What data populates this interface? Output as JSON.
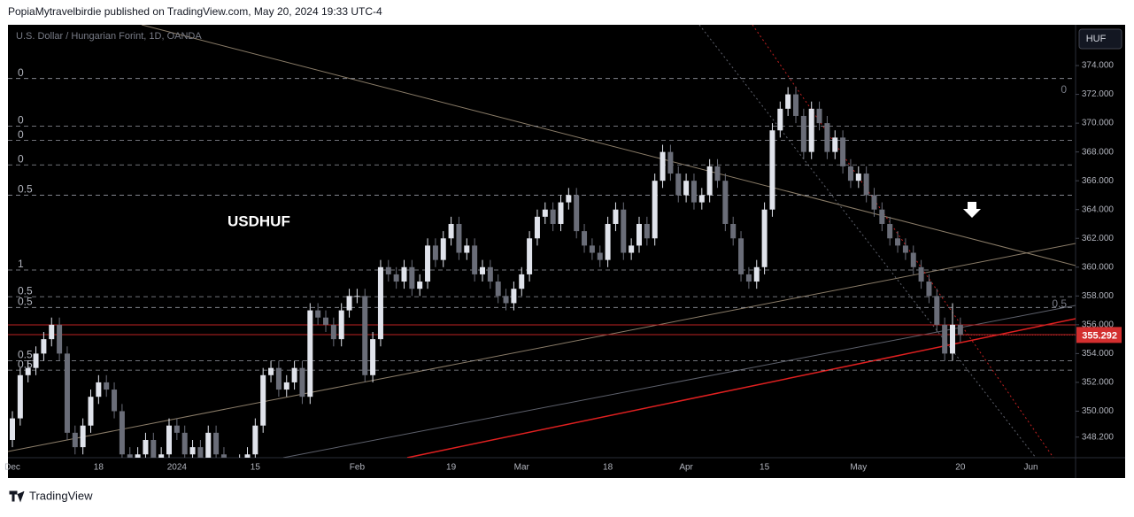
{
  "header": {
    "byline": "PopiaMytravelbirdie published on TradingView.com, May 20, 2024 19:33 UTC-4",
    "brand": "TradingView"
  },
  "chart_data": {
    "type": "candlestick",
    "title": "USDHUF",
    "subtitle": "U.S. Dollar / Hungarian Forint, 1D, OANDA",
    "currency": "HUF",
    "up_color": "#e0e3eb",
    "down_color": "#6a6d78",
    "grid": false,
    "categories": [
      "Dec",
      null,
      null,
      null,
      null,
      null,
      null,
      null,
      null,
      null,
      null,
      "18",
      null,
      null,
      null,
      null,
      null,
      null,
      null,
      null,
      null,
      "2024",
      null,
      null,
      null,
      null,
      null,
      null,
      null,
      null,
      null,
      "15",
      null,
      null,
      null,
      null,
      null,
      null,
      null,
      null,
      null,
      null,
      null,
      null,
      "Feb",
      null,
      null,
      null,
      null,
      null,
      null,
      null,
      null,
      null,
      null,
      null,
      "19",
      null,
      null,
      null,
      null,
      null,
      null,
      null,
      null,
      "Mar",
      null,
      null,
      null,
      null,
      null,
      null,
      null,
      null,
      null,
      null,
      "18",
      null,
      null,
      null,
      null,
      null,
      null,
      null,
      null,
      null,
      "Apr",
      null,
      null,
      null,
      null,
      null,
      null,
      null,
      null,
      null,
      "15",
      null,
      null,
      null,
      null,
      null,
      null,
      null,
      null,
      null,
      null,
      null,
      "May",
      null,
      null,
      null,
      null,
      null,
      null,
      null,
      null,
      null,
      null,
      null,
      null,
      "20",
      null,
      null,
      null,
      null,
      null,
      null,
      null,
      null,
      "Jun"
    ],
    "open": [
      348,
      349.5,
      352.5,
      353,
      354,
      355,
      356,
      354,
      348.5,
      347.5,
      349,
      351,
      352,
      351.5,
      350,
      347,
      346,
      347,
      348,
      346.5,
      347,
      349,
      348.5,
      347,
      347.5,
      346,
      348.5,
      347,
      345.5,
      346,
      346.5,
      347,
      349,
      352.5,
      353,
      351.5,
      352,
      353,
      351,
      357,
      356.5,
      356,
      355,
      357,
      358,
      358,
      352.5,
      355,
      360,
      359.5,
      359,
      360,
      358.5,
      359,
      361.5,
      360.5,
      362,
      363,
      361,
      361.5,
      359.5,
      360,
      359,
      358,
      357.5,
      358.5,
      359.5,
      362,
      363.5,
      364,
      363,
      364.5,
      365,
      362.5,
      361.5,
      361,
      360.5,
      363,
      364,
      361,
      361.5,
      363,
      362,
      366,
      368,
      366.5,
      365,
      366,
      364.5,
      365,
      367,
      366,
      363,
      362,
      359.5,
      359,
      360,
      364,
      369.5,
      371,
      372,
      370.5,
      368,
      371,
      370,
      368,
      369,
      367,
      366,
      366.5,
      365,
      364,
      363,
      362,
      361.5,
      361,
      360,
      359,
      358,
      356,
      354,
      356,
      null,
      null,
      null,
      null,
      null,
      null,
      null,
      null,
      null
    ],
    "high": [
      350,
      353,
      353.5,
      354.5,
      355.5,
      356.5,
      356.5,
      354.5,
      349,
      349.5,
      351.5,
      352.5,
      352.5,
      352,
      350.5,
      347.5,
      347.5,
      348.5,
      348.5,
      347.5,
      349.5,
      349.5,
      349,
      348,
      348,
      349,
      349,
      347.5,
      346.5,
      347,
      347.5,
      349.5,
      353,
      353.5,
      353.5,
      352.5,
      353.5,
      353.5,
      357.5,
      357.5,
      357,
      356.5,
      357.5,
      358.5,
      358.5,
      358.5,
      355.5,
      360.5,
      360.5,
      360,
      360.5,
      360.5,
      359.5,
      362,
      362,
      362.5,
      363.5,
      363.5,
      362,
      362,
      360.5,
      360.5,
      359.5,
      358.5,
      359,
      360,
      362.5,
      364,
      364.5,
      364.5,
      365,
      365.5,
      365.5,
      363,
      362,
      361.5,
      363.5,
      364.5,
      364.5,
      362,
      363.5,
      363.5,
      366.5,
      368.5,
      368.5,
      367,
      366.5,
      366.5,
      365.5,
      367.5,
      367.5,
      366.5,
      363.5,
      362.5,
      360,
      360.5,
      364.5,
      370,
      371.5,
      372.5,
      372.5,
      371,
      371.5,
      371.5,
      370.5,
      369.5,
      369.5,
      367.5,
      367,
      367,
      365.5,
      364.5,
      363.5,
      362.5,
      362,
      361.5,
      360.5,
      359.5,
      358.5,
      356.5,
      357.5,
      356.5,
      null,
      null,
      null,
      null,
      null,
      null,
      null,
      null,
      null
    ],
    "low": [
      347.5,
      349,
      352,
      352.5,
      353.5,
      354.5,
      353.5,
      348,
      347,
      347,
      348.5,
      350.5,
      351,
      349.5,
      346.5,
      345.5,
      345.5,
      346.5,
      346,
      346,
      346.5,
      348,
      346.5,
      346.5,
      345.5,
      345.5,
      346.5,
      345,
      345,
      345.5,
      346,
      346.5,
      348.5,
      352,
      351,
      351,
      351.5,
      350.5,
      350.5,
      356,
      355.5,
      354.5,
      354.5,
      356.5,
      357.5,
      352,
      352,
      354.5,
      359,
      358.5,
      358.5,
      358,
      358,
      358.5,
      360,
      360,
      361.5,
      360.5,
      360.5,
      359,
      359,
      358.5,
      357.5,
      357,
      357,
      358,
      359,
      361.5,
      363,
      362.5,
      362.5,
      364,
      362,
      361,
      360.5,
      360,
      360,
      362.5,
      360.5,
      360.5,
      361,
      361.5,
      361.5,
      365.5,
      366,
      364.5,
      364.5,
      364,
      364,
      364.5,
      365.5,
      362.5,
      361.5,
      359,
      358.5,
      358.5,
      359.5,
      363.5,
      369,
      370.5,
      370,
      367.5,
      367.5,
      369.5,
      367.5,
      367.5,
      366.5,
      365.5,
      365.5,
      364.5,
      363.5,
      362.5,
      361.5,
      361,
      360.5,
      359.5,
      358.5,
      357.5,
      355.5,
      353.5,
      353.5,
      354.8,
      null,
      null,
      null,
      null,
      null,
      null,
      null,
      null,
      null
    ],
    "close": [
      349.5,
      352.5,
      353,
      354,
      355,
      356,
      354,
      348.5,
      347.5,
      349,
      351,
      352,
      351.5,
      350,
      347,
      346,
      347,
      348,
      346.5,
      347,
      349,
      348.5,
      347,
      347.5,
      346,
      348.5,
      347,
      345.5,
      346,
      346.5,
      347,
      349,
      352.5,
      353,
      351.5,
      352,
      353,
      351,
      357,
      356.5,
      356,
      355,
      357,
      358,
      358,
      352.5,
      355,
      360,
      359.5,
      359,
      360,
      358.5,
      359,
      361.5,
      360.5,
      362,
      363,
      361,
      361.5,
      359.5,
      360,
      359,
      358,
      357.5,
      358.5,
      359.5,
      362,
      363.5,
      364,
      363,
      364.5,
      365,
      362.5,
      361.5,
      361,
      360.5,
      363,
      364,
      361,
      361.5,
      363,
      362,
      366,
      368,
      366.5,
      365,
      366,
      364.5,
      365,
      367,
      366,
      363,
      362,
      359.5,
      359,
      360,
      364,
      369.5,
      371,
      372,
      370.5,
      368,
      371,
      370,
      368,
      369,
      367,
      366,
      366.5,
      365,
      364,
      363,
      362,
      361.5,
      361,
      360,
      359,
      358,
      356,
      354,
      356,
      355.292,
      null,
      null,
      null,
      null,
      null,
      null,
      null,
      null,
      null
    ],
    "ylim": [
      346.77,
      376.83
    ],
    "yticks": [
      {
        "value": 348.2,
        "label": "348.200"
      },
      {
        "value": 350,
        "label": "350.000"
      },
      {
        "value": 352,
        "label": "352.000"
      },
      {
        "value": 354,
        "label": "354.000"
      },
      {
        "value": 356,
        "label": "356.000"
      },
      {
        "value": 358,
        "label": "358.000"
      },
      {
        "value": 360,
        "label": "360.000"
      },
      {
        "value": 362,
        "label": "362.000"
      },
      {
        "value": 364,
        "label": "364.000"
      },
      {
        "value": 366,
        "label": "366.000"
      },
      {
        "value": 368,
        "label": "368.000"
      },
      {
        "value": 370,
        "label": "370.000"
      },
      {
        "value": 372,
        "label": "372.000"
      },
      {
        "value": 374,
        "label": "374.000"
      }
    ],
    "fib_levels": [
      {
        "value": 373.1,
        "label": "0"
      },
      {
        "value": 369.8,
        "label": "0"
      },
      {
        "value": 368.8,
        "label": "0"
      },
      {
        "value": 367.1,
        "label": "0"
      },
      {
        "value": 365,
        "label": "0.5"
      },
      {
        "value": 359.8,
        "label": "1"
      },
      {
        "value": 357.95,
        "label": "0.5"
      },
      {
        "value": 357.2,
        "label": "0.5"
      },
      {
        "value": 353.5,
        "label": "0.5"
      },
      {
        "value": 352.85,
        "label": "0.5"
      }
    ],
    "right_fib_levels": [
      {
        "value": 372.3,
        "label": "0"
      },
      {
        "value": 357.4,
        "label": "0.5"
      }
    ]
  }
}
